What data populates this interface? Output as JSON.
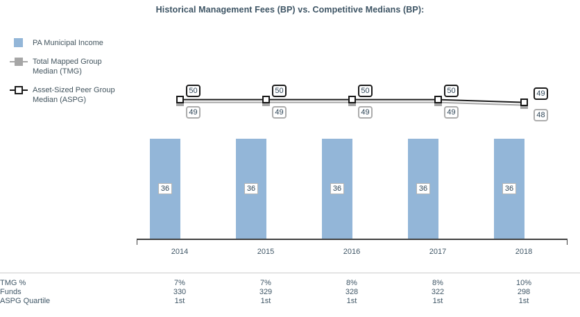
{
  "chart_data": {
    "type": "bar+line",
    "title": "Historical Management Fees (BP) vs. Competitive Medians (BP):",
    "categories": [
      "2014",
      "2015",
      "2016",
      "2017",
      "2018"
    ],
    "series": [
      {
        "name": "PA Municipal Income",
        "type": "bar",
        "color": "#93B6D8",
        "values": [
          36,
          36,
          36,
          36,
          36
        ]
      },
      {
        "name": "Total Mapped Group Median (TMG)",
        "type": "line",
        "color": "#A6A6A6",
        "values": [
          49,
          49,
          49,
          49,
          48
        ]
      },
      {
        "name": "Asset-Sized Peer Group Median (ASPG)",
        "type": "line",
        "color": "#1A1A1A",
        "values": [
          50,
          50,
          50,
          50,
          49
        ]
      }
    ],
    "ylim": [
      0,
      55
    ],
    "grid": false,
    "legend_position": "left",
    "value_labels_shown": true
  },
  "legend": {
    "items": [
      {
        "label": "PA Municipal Income"
      },
      {
        "label": "Total Mapped Group Median (TMG)"
      },
      {
        "label": "Asset-Sized Peer Group Median (ASPG)"
      }
    ]
  },
  "table": {
    "rows": [
      {
        "label": "TMG %",
        "values": [
          "7%",
          "7%",
          "8%",
          "8%",
          "10%"
        ]
      },
      {
        "label": "Funds",
        "values": [
          "330",
          "329",
          "328",
          "322",
          "298"
        ]
      },
      {
        "label": "ASPG Quartile",
        "values": [
          "1st",
          "1st",
          "1st",
          "1st",
          "1st"
        ]
      }
    ]
  },
  "colors": {
    "title_text": "#3D5464",
    "body_text": "#3E5565",
    "bar_fill": "#93B6D8",
    "tmg_gray": "#A6A6A6",
    "aspg_black": "#1A1A1A",
    "axis": "#3F3F3F"
  }
}
